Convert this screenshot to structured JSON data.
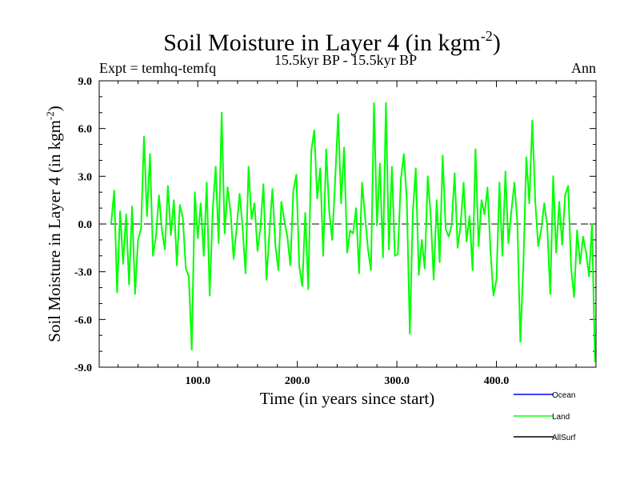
{
  "chart_data": {
    "type": "line",
    "title": "Soil Moisture in Layer 4 (in kgm",
    "title_sup": "-2",
    "title_suffix": ")",
    "subtitle_left": "Expt = temhq-temfq",
    "subtitle_center": "15.5kyr BP - 15.5kyr BP",
    "subtitle_right": "Ann",
    "xlabel": "Time (in years since start)",
    "ylabel": "Soil Moisture in Layer 4 (in kgm",
    "ylabel_sup": "-2",
    "ylabel_suffix": ")",
    "xlim": [
      1,
      500
    ],
    "ylim": [
      -9,
      9
    ],
    "x_ticks": [
      100,
      200,
      300,
      400
    ],
    "x_tick_labels": [
      "100.0",
      "200.0",
      "300.0",
      "400.0"
    ],
    "y_ticks": [
      -9,
      -6,
      -3,
      0,
      3,
      6,
      9
    ],
    "y_tick_labels": [
      "-9.0",
      "-6.0",
      "-3.0",
      "0.0",
      "3.0",
      "6.0",
      "9.0"
    ],
    "zero_line": true,
    "legend": [
      {
        "name": "Ocean",
        "color": "#0000ff"
      },
      {
        "name": "Land",
        "color": "#00ff00"
      },
      {
        "name": "AllSurf",
        "color": "#000000"
      }
    ],
    "series": [
      {
        "name": "Land",
        "color": "#00ff00",
        "x": [
          13,
          16,
          19,
          22,
          25,
          28,
          31,
          34,
          37,
          40,
          43,
          46,
          49,
          52,
          55,
          58,
          61,
          64,
          67,
          70,
          73,
          76,
          79,
          82,
          85,
          88,
          91,
          94,
          97,
          100,
          103,
          106,
          109,
          112,
          115,
          118,
          121,
          124,
          127,
          130,
          133,
          136,
          139,
          142,
          145,
          148,
          151,
          154,
          157,
          160,
          163,
          166,
          169,
          172,
          175,
          178,
          181,
          184,
          187,
          190,
          193,
          196,
          199,
          202,
          205,
          208,
          211,
          214,
          217,
          220,
          223,
          226,
          229,
          232,
          235,
          238,
          241,
          244,
          247,
          250,
          253,
          256,
          259,
          262,
          265,
          268,
          271,
          274,
          277,
          280,
          283,
          286,
          289,
          292,
          295,
          298,
          301,
          304,
          307,
          310,
          313,
          316,
          319,
          322,
          325,
          328,
          331,
          334,
          337,
          340,
          343,
          346,
          349,
          352,
          355,
          358,
          361,
          364,
          367,
          370,
          373,
          376,
          379,
          382,
          385,
          388,
          391,
          394,
          397,
          400,
          403,
          406,
          409,
          412,
          415,
          418,
          421,
          424,
          427,
          430,
          433,
          436,
          439,
          442,
          445,
          448,
          451,
          454,
          457,
          460,
          463,
          466,
          469,
          472,
          475,
          478,
          481,
          484,
          487,
          490,
          493,
          496,
          499
        ],
        "values": [
          0.0,
          2.1,
          -4.3,
          0.8,
          -2.5,
          0.6,
          -3.8,
          1.1,
          -4.4,
          -1.0,
          -0.3,
          5.5,
          0.5,
          4.4,
          -2.0,
          -0.8,
          1.8,
          -0.4,
          -1.6,
          2.4,
          -0.7,
          1.5,
          -2.6,
          1.2,
          0.4,
          -2.8,
          -3.3,
          -7.9,
          2.0,
          -0.9,
          1.3,
          -2.0,
          2.6,
          -4.5,
          0.9,
          3.6,
          -1.2,
          7.0,
          -0.6,
          2.3,
          0.7,
          -2.2,
          -0.3,
          1.9,
          -0.2,
          -3.1,
          3.6,
          0.3,
          1.3,
          -1.7,
          -0.2,
          2.5,
          -3.5,
          -0.5,
          2.2,
          -1.4,
          -2.9,
          1.4,
          0.2,
          -0.8,
          -2.6,
          2.1,
          3.1,
          -2.7,
          -3.9,
          0.7,
          -4.1,
          4.6,
          5.9,
          1.6,
          3.5,
          -2.0,
          4.7,
          0.8,
          -1.0,
          2.7,
          6.9,
          1.3,
          4.8,
          -1.8,
          -0.4,
          -0.6,
          1.0,
          -3.1,
          2.6,
          0.5,
          -1.6,
          -2.9,
          7.6,
          -0.1,
          3.8,
          -2.1,
          7.6,
          -1.6,
          3.6,
          -2.0,
          -1.9,
          2.8,
          4.4,
          1.5,
          -6.9,
          0.7,
          3.5,
          -3.2,
          -1.0,
          -2.8,
          3.0,
          0.5,
          -3.5,
          1.5,
          -2.4,
          4.3,
          -0.3,
          -0.8,
          -0.1,
          3.2,
          -1.5,
          -0.1,
          2.6,
          -1.1,
          0.5,
          -2.9,
          4.7,
          -1.4,
          1.5,
          0.6,
          2.3,
          -1.7,
          -4.5,
          -3.5,
          2.6,
          -2.0,
          3.3,
          -1.2,
          0.8,
          2.6,
          0.1,
          -7.4,
          -2.6,
          4.2,
          1.3,
          6.5,
          1.4,
          -1.4,
          -0.3,
          1.3,
          -0.1,
          -4.4,
          3.0,
          -1.8,
          1.4,
          -1.3,
          1.8,
          2.4,
          -2.8,
          -4.6,
          -0.4,
          -2.5,
          -0.8,
          -1.8,
          -3.3,
          0.0,
          -8.7
        ]
      }
    ]
  }
}
